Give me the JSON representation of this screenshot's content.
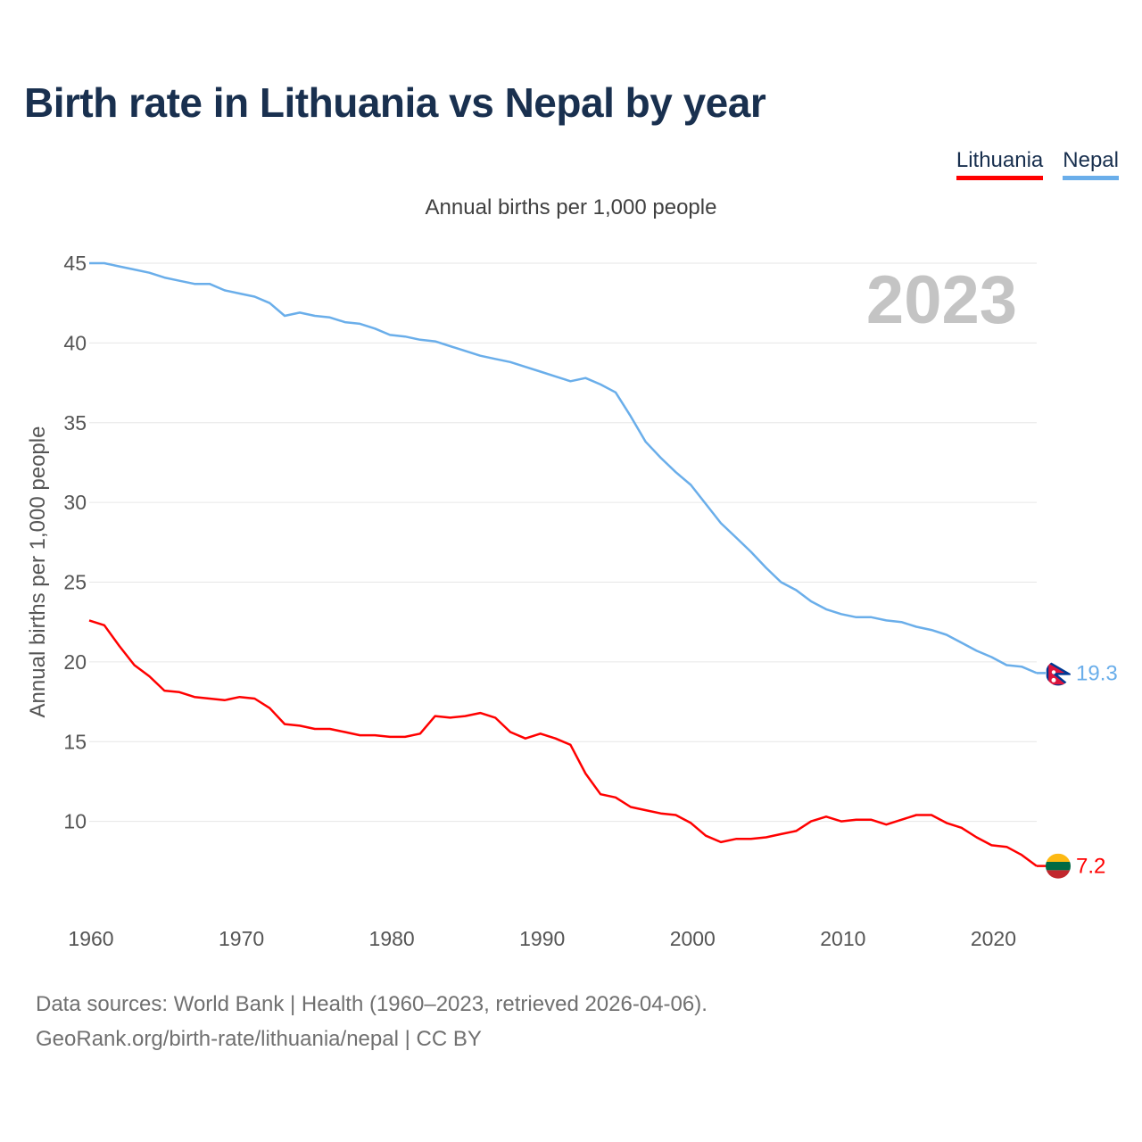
{
  "title": "Birth rate in Lithuania vs Nepal by year",
  "legend": [
    {
      "name": "Lithuania",
      "color": "#ff0000"
    },
    {
      "name": "Nepal",
      "color": "#6aaeea"
    }
  ],
  "footer": {
    "line1": "Data sources: World Bank | Health (1960–2023, retrieved 2026-04-06).",
    "line2": "GeoRank.org/birth-rate/lithuania/nepal | CC BY"
  },
  "chart_data": {
    "type": "line",
    "title": "Annual births per 1,000 people",
    "ylabel": "Annual births per 1,000 people",
    "xlabel": "",
    "year_label": "2023",
    "xlim": [
      1960,
      2023
    ],
    "ylim": [
      5,
      45
    ],
    "x_ticks": [
      1960,
      1970,
      1980,
      1990,
      2000,
      2010,
      2020
    ],
    "y_ticks": [
      10,
      15,
      20,
      25,
      30,
      35,
      40,
      45
    ],
    "grid": true,
    "legend_position": "top-right",
    "x": [
      1960,
      1961,
      1962,
      1963,
      1964,
      1965,
      1966,
      1967,
      1968,
      1969,
      1970,
      1971,
      1972,
      1973,
      1974,
      1975,
      1976,
      1977,
      1978,
      1979,
      1980,
      1981,
      1982,
      1983,
      1984,
      1985,
      1986,
      1987,
      1988,
      1989,
      1990,
      1991,
      1992,
      1993,
      1994,
      1995,
      1996,
      1997,
      1998,
      1999,
      2000,
      2001,
      2002,
      2003,
      2004,
      2005,
      2006,
      2007,
      2008,
      2009,
      2010,
      2011,
      2012,
      2013,
      2014,
      2015,
      2016,
      2017,
      2018,
      2019,
      2020,
      2021,
      2022,
      2023
    ],
    "series": [
      {
        "name": "Lithuania",
        "color": "#ff0000",
        "end_label": "7.2",
        "values": [
          22.6,
          22.3,
          21.0,
          19.8,
          19.1,
          18.2,
          18.1,
          17.8,
          17.7,
          17.6,
          17.8,
          17.7,
          17.1,
          16.1,
          16.0,
          15.8,
          15.8,
          15.6,
          15.4,
          15.4,
          15.3,
          15.3,
          15.5,
          16.6,
          16.5,
          16.6,
          16.8,
          16.5,
          15.6,
          15.2,
          15.5,
          15.2,
          14.8,
          13.0,
          11.7,
          11.5,
          10.9,
          10.7,
          10.5,
          10.4,
          9.9,
          9.1,
          8.7,
          8.9,
          8.9,
          9.0,
          9.2,
          9.4,
          10.0,
          10.3,
          10.0,
          10.1,
          10.1,
          9.8,
          10.1,
          10.4,
          10.4,
          9.9,
          9.6,
          9.0,
          8.5,
          8.4,
          7.9,
          7.2
        ]
      },
      {
        "name": "Nepal",
        "color": "#6aaeea",
        "end_label": "19.3",
        "values": [
          45.0,
          45.0,
          44.8,
          44.6,
          44.4,
          44.1,
          43.9,
          43.7,
          43.7,
          43.3,
          43.1,
          42.9,
          42.5,
          41.7,
          41.9,
          41.7,
          41.6,
          41.3,
          41.2,
          40.9,
          40.5,
          40.4,
          40.2,
          40.1,
          39.8,
          39.5,
          39.2,
          39.0,
          38.8,
          38.5,
          38.2,
          37.9,
          37.6,
          37.8,
          37.4,
          36.9,
          35.4,
          33.8,
          32.8,
          31.9,
          31.1,
          29.9,
          28.7,
          27.8,
          26.9,
          25.9,
          25.0,
          24.5,
          23.8,
          23.3,
          23.0,
          22.8,
          22.8,
          22.6,
          22.5,
          22.2,
          22.0,
          21.7,
          21.2,
          20.7,
          20.3,
          19.8,
          19.7,
          19.3
        ]
      }
    ]
  }
}
